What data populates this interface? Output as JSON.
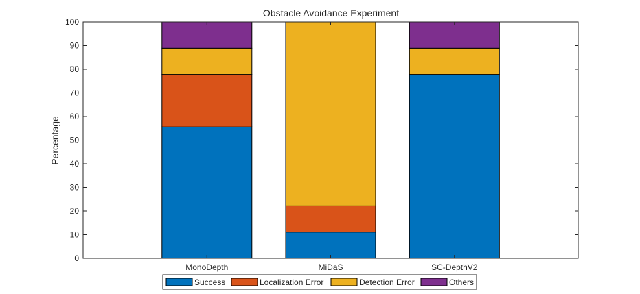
{
  "chart_data": {
    "type": "bar",
    "stacked": true,
    "title": "Obstacle Avoidance Experiment",
    "xlabel": "",
    "ylabel": "Percentage",
    "ylim": [
      0,
      100
    ],
    "yticks": [
      0,
      10,
      20,
      30,
      40,
      50,
      60,
      70,
      80,
      90,
      100
    ],
    "grid": false,
    "legend_position": "bottom",
    "categories": [
      "MonoDepth",
      "MiDaS",
      "SC-DepthV2"
    ],
    "series": [
      {
        "name": "Success",
        "color": "#0072BD",
        "values": [
          55.6,
          11.1,
          77.8
        ]
      },
      {
        "name": "Localization Error",
        "color": "#D95319",
        "values": [
          22.2,
          11.1,
          0
        ]
      },
      {
        "name": "Detection Error",
        "color": "#EDB120",
        "values": [
          11.1,
          77.8,
          11.1
        ]
      },
      {
        "name": "Others",
        "color": "#7E2F8E",
        "values": [
          11.1,
          0,
          11.1
        ]
      }
    ]
  }
}
